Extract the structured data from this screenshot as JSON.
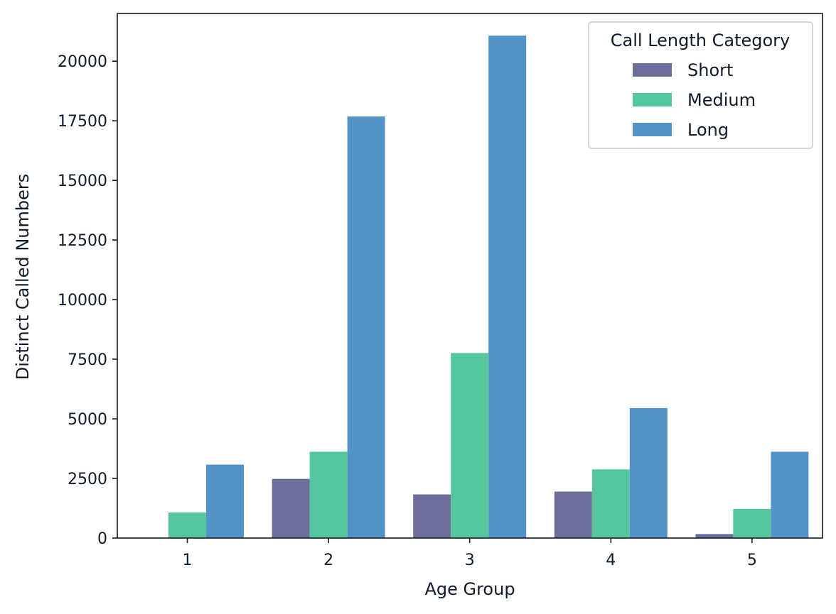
{
  "chart_data": {
    "type": "bar",
    "title": "",
    "xlabel": "Age Group",
    "ylabel": "Distinct Called Numbers",
    "categories": [
      "1",
      "2",
      "3",
      "4",
      "5"
    ],
    "ylim": [
      0,
      22000
    ],
    "yticks": [
      0,
      2500,
      5000,
      7500,
      10000,
      12500,
      15000,
      17500,
      20000
    ],
    "grid": false,
    "legend": {
      "title": "Call Length Category",
      "placement": "top-right"
    },
    "series": [
      {
        "name": "Short",
        "color": "#6c6f9c",
        "values": [
          0,
          2480,
          1830,
          1950,
          170
        ]
      },
      {
        "name": "Medium",
        "color": "#56c69e",
        "values": [
          1070,
          3620,
          7760,
          2880,
          1220
        ]
      },
      {
        "name": "Long",
        "color": "#5393c8",
        "values": [
          3080,
          17680,
          21070,
          5450,
          3620
        ]
      }
    ]
  }
}
